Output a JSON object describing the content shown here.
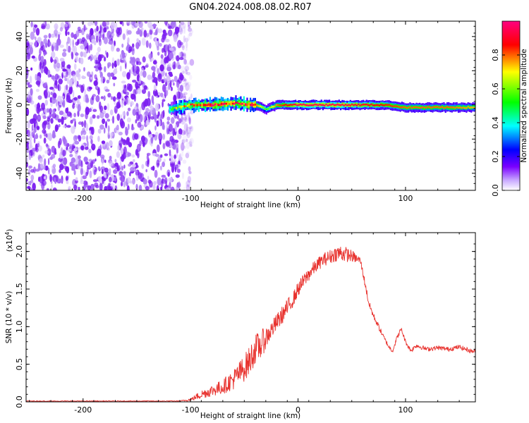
{
  "title": "GN04.2024.008.08.02.R07",
  "chart_data": [
    {
      "type": "heatmap",
      "name": "spectrogram",
      "xlabel": "Height of straight line (km)",
      "ylabel": "Frequency (Hz)",
      "xlim": [
        -253,
        165
      ],
      "ylim": [
        -50,
        49
      ],
      "xticks": [
        -200,
        -100,
        0,
        100
      ],
      "yticks": [
        -40,
        -20,
        0,
        20,
        40
      ],
      "colorbar": {
        "label": "Normalized spectral amplitude",
        "range": [
          0,
          1
        ],
        "ticks": [
          "0.0",
          "0.2",
          "0.4",
          "0.6",
          "0.8"
        ],
        "colormap": [
          "#ffffff",
          "#7a00ff",
          "#0000ff",
          "#00ffff",
          "#00ff00",
          "#ffff00",
          "#ff0000",
          "#ff0080"
        ]
      },
      "noise_region_x": [
        -253,
        -108
      ],
      "signal_band": {
        "x": [
          -120,
          -100,
          -80,
          -60,
          -40,
          -30,
          -20,
          0,
          20,
          40,
          60,
          80,
          100,
          120,
          140,
          165
        ],
        "frequency": [
          -2.5,
          0,
          0,
          1,
          0,
          -2.5,
          0,
          0,
          0,
          0,
          0,
          0,
          -1.5,
          -1.5,
          -1.5,
          -1.5
        ],
        "amplitude": [
          0.35,
          0.7,
          0.75,
          0.7,
          0.8,
          0.6,
          0.8,
          0.95,
          0.95,
          0.95,
          0.9,
          0.85,
          0.8,
          0.8,
          0.8,
          0.75
        ]
      }
    },
    {
      "type": "line",
      "name": "snr",
      "xlabel": "Height of straight line (km)",
      "ylabel": "SNR (10 * v/v)",
      "yscale_label": "(x10",
      "yscale_exp": "4",
      "xlim": [
        -253,
        165
      ],
      "ylim": [
        0,
        2.25
      ],
      "xticks": [
        -200,
        -100,
        0,
        100
      ],
      "yticks": [
        "0.0",
        "0.5",
        "1.0",
        "1.5",
        "2.0"
      ],
      "color": "#e8322e",
      "series": [
        {
          "x": [
            -253,
            -200,
            -150,
            -110,
            -100,
            -90,
            -80,
            -70,
            -60,
            -50,
            -45,
            -40,
            -35,
            -30,
            -25,
            -20,
            -15,
            -10,
            -5,
            0,
            5,
            10,
            15,
            20,
            25,
            30,
            35,
            40,
            45,
            50,
            55,
            58,
            62,
            66,
            70,
            75,
            80,
            85,
            88,
            92,
            96,
            100,
            105,
            110,
            120,
            130,
            140,
            150,
            160,
            165
          ],
          "y": [
            0.01,
            0.01,
            0.01,
            0.01,
            0.03,
            0.1,
            0.15,
            0.2,
            0.3,
            0.45,
            0.55,
            0.7,
            0.75,
            0.85,
            0.95,
            1.05,
            1.15,
            1.25,
            1.35,
            1.5,
            1.6,
            1.7,
            1.78,
            1.85,
            1.9,
            1.93,
            1.97,
            1.98,
            1.96,
            1.94,
            1.9,
            1.88,
            1.6,
            1.3,
            1.15,
            1.0,
            0.85,
            0.72,
            0.68,
            0.85,
            0.97,
            0.8,
            0.68,
            0.75,
            0.7,
            0.72,
            0.7,
            0.73,
            0.68,
            0.67
          ],
          "noise": [
            0.005,
            0.005,
            0.005,
            0.005,
            0.02,
            0.06,
            0.08,
            0.1,
            0.14,
            0.18,
            0.2,
            0.2,
            0.2,
            0.15,
            0.12,
            0.12,
            0.12,
            0.12,
            0.1,
            0.1,
            0.1,
            0.1,
            0.09,
            0.09,
            0.09,
            0.1,
            0.1,
            0.12,
            0.1,
            0.08,
            0.06,
            0.05,
            0.05,
            0.05,
            0.04,
            0.04,
            0.03,
            0.03,
            0.03,
            0.03,
            0.03,
            0.03,
            0.03,
            0.03,
            0.03,
            0.03,
            0.03,
            0.03,
            0.03,
            0.03
          ]
        }
      ]
    }
  ]
}
